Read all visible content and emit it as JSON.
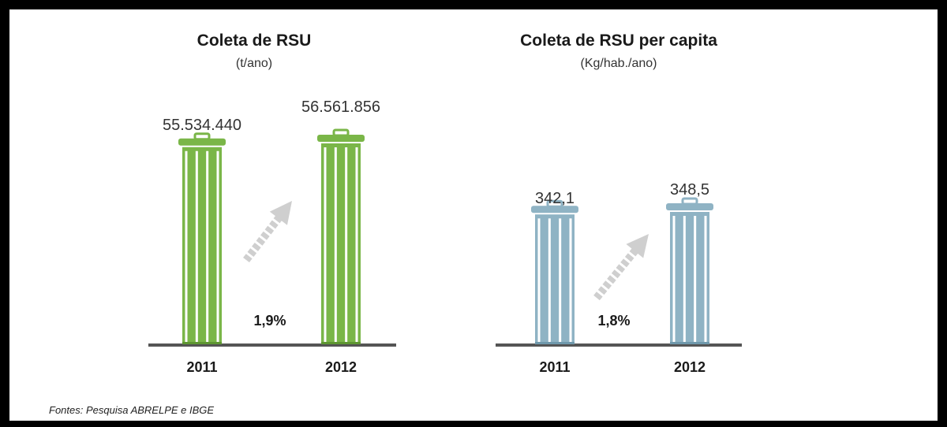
{
  "colors": {
    "green_can": "#7ab648",
    "green_can_dark": "#5e9632",
    "blue_can": "#8fb3c4",
    "blue_can_dark": "#6f98ab",
    "arrow": "#cfcfcf",
    "baseline": "#555555"
  },
  "chart_data": [
    {
      "type": "bar",
      "title": "Coleta de RSU",
      "subtitle": "(t/ano)",
      "categories": [
        "2011",
        "2012"
      ],
      "values": [
        55534440,
        56561856
      ],
      "value_labels": [
        "55.534.440",
        "56.561.856"
      ],
      "growth_label": "1,9%",
      "color_key": "green"
    },
    {
      "type": "bar",
      "title": "Coleta de RSU per capita",
      "subtitle": "(Kg/hab./ano)",
      "categories": [
        "2011",
        "2012"
      ],
      "values": [
        342.1,
        348.5
      ],
      "value_labels": [
        "342,1",
        "348,5"
      ],
      "growth_label": "1,8%",
      "color_key": "blue"
    }
  ],
  "source_text": "Fontes: Pesquisa ABRELPE e IBGE"
}
